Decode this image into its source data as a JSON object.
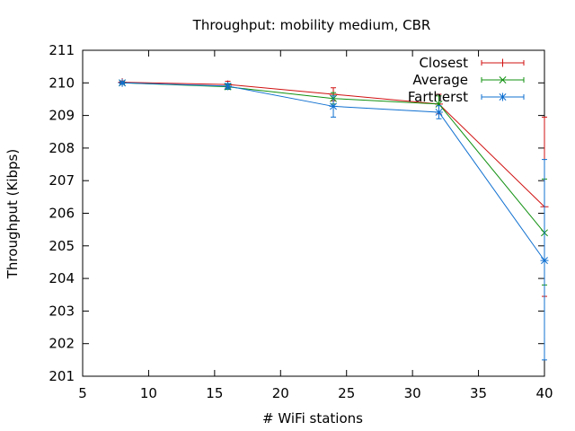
{
  "chart_data": {
    "type": "line",
    "title": "Throughput: mobility medium, CBR",
    "xlabel": "# WiFi stations",
    "ylabel": "Throughput (Kibps)",
    "xlim": [
      5,
      40
    ],
    "ylim": [
      201,
      211
    ],
    "xticks": [
      5,
      10,
      15,
      20,
      25,
      30,
      35,
      40
    ],
    "yticks": [
      201,
      202,
      203,
      204,
      205,
      206,
      207,
      208,
      209,
      210,
      211
    ],
    "grid": false,
    "legend_position": "top-right",
    "series": [
      {
        "name": "Closest",
        "color": "#d01010",
        "marker": "plus",
        "x": [
          8,
          16,
          24,
          32,
          40
        ],
        "y": [
          210.02,
          209.95,
          209.65,
          209.35,
          206.2
        ],
        "err_low": [
          209.98,
          209.85,
          209.45,
          209.05,
          203.45
        ],
        "err_high": [
          210.06,
          210.05,
          209.85,
          209.65,
          208.95
        ]
      },
      {
        "name": "Average",
        "color": "#109010",
        "marker": "x",
        "x": [
          8,
          16,
          24,
          32,
          40
        ],
        "y": [
          210.0,
          209.88,
          209.52,
          209.35,
          205.4
        ],
        "err_low": [
          209.96,
          209.8,
          209.35,
          209.1,
          203.8
        ],
        "err_high": [
          210.04,
          209.96,
          209.7,
          209.6,
          207.05
        ]
      },
      {
        "name": "Farthest",
        "legend_label": "Fartherst",
        "color": "#1070d0",
        "marker": "star",
        "x": [
          8,
          16,
          24,
          32,
          40
        ],
        "y": [
          210.0,
          209.9,
          209.28,
          209.1,
          204.55
        ],
        "err_low": [
          209.96,
          209.82,
          208.95,
          208.9,
          201.5
        ],
        "err_high": [
          210.04,
          209.98,
          209.6,
          209.3,
          207.65
        ]
      }
    ]
  }
}
